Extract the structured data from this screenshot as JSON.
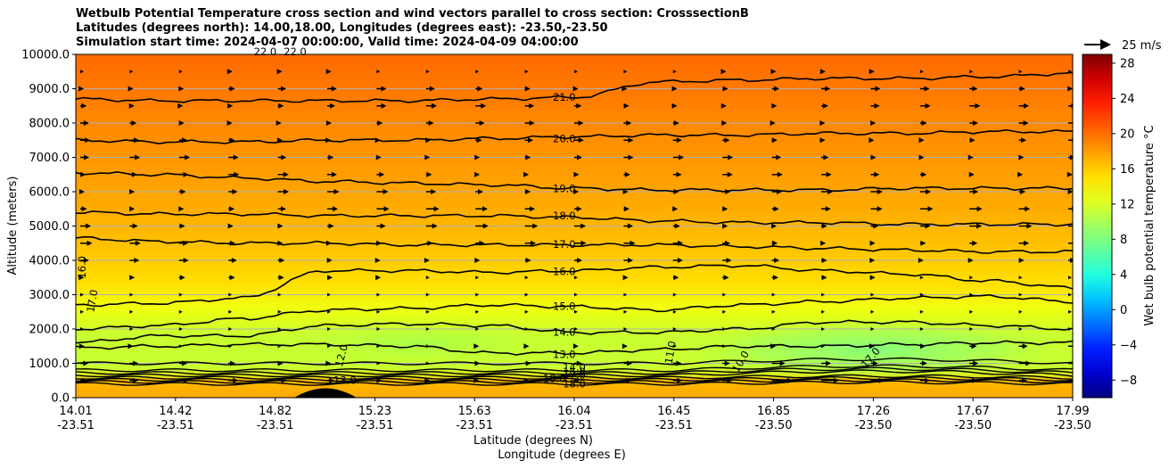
{
  "chart_data": {
    "type": "contour",
    "title_lines": [
      "Wetbulb Potential Temperature cross section and wind vectors parallel to cross section: CrosssectionB",
      "Latitudes (degrees north): 14.00,18.00, Longitudes (degrees east): -23.50,-23.50",
      "Simulation start time: 2024-04-07 00:00:00, Valid time: 2024-04-09 04:00:00"
    ],
    "xlabel_lat": "Latitude (degrees N)",
    "xlabel_lon": "Longitude (degrees E)",
    "ylabel": "Altitude (meters)",
    "ylim": [
      0,
      10000
    ],
    "y_ticks": [
      0,
      1000,
      2000,
      3000,
      4000,
      5000,
      6000,
      7000,
      8000,
      9000,
      10000
    ],
    "y_tick_labels": [
      "0.0",
      "1000.0",
      "2000.0",
      "3000.0",
      "4000.0",
      "5000.0",
      "6000.0",
      "7000.0",
      "8000.0",
      "9000.0",
      "10000.0"
    ],
    "x_tick_lat_labels": [
      "14.01",
      "14.42",
      "14.82",
      "15.23",
      "15.63",
      "16.04",
      "16.45",
      "16.85",
      "17.26",
      "17.67",
      "17.99"
    ],
    "x_tick_lon_labels": [
      "-23.51",
      "-23.51",
      "-23.51",
      "-23.51",
      "-23.51",
      "-23.51",
      "-23.51",
      "-23.50",
      "-23.50",
      "-23.50",
      "-23.50"
    ],
    "grid": true,
    "colorbar": {
      "label": "Wet bulb potential temperature $^\\circ$C",
      "label_display": "Wet bulb potential temperature °C",
      "range": [
        -10,
        29
      ],
      "ticks": [
        -8,
        -4,
        0,
        4,
        8,
        12,
        16,
        20,
        24,
        28
      ],
      "tick_labels": [
        "−8",
        "−4",
        "0",
        "4",
        "8",
        "12",
        "16",
        "20",
        "24",
        "28"
      ],
      "colors": [
        "#000080",
        "#0000d0",
        "#0020ff",
        "#0070ff",
        "#00c0ff",
        "#20ffdf",
        "#60ff9f",
        "#a0ff60",
        "#e0ff20",
        "#ffe000",
        "#ffa000",
        "#ff6000",
        "#ff2000",
        "#d00000",
        "#800000"
      ]
    },
    "quiver_key": {
      "label": "25 m/s",
      "value": 25
    },
    "contour_lines": [
      {
        "level": 21,
        "label": "21.0",
        "altitudes": [
          8700,
          8650,
          8650,
          8650,
          8650,
          8700,
          8750,
          9200,
          9250,
          9300,
          9300,
          9350,
          9450
        ]
      },
      {
        "level": 20,
        "label": "20.0",
        "altitudes": [
          7500,
          7450,
          7450,
          7500,
          7500,
          7550,
          7600,
          7650,
          7650,
          7700,
          7700,
          7750,
          7750
        ]
      },
      {
        "level": 19,
        "label": "19.0",
        "altitudes": [
          6550,
          6500,
          6400,
          6300,
          6250,
          6200,
          6100,
          6050,
          6050,
          6050,
          6100,
          6100,
          6100
        ]
      },
      {
        "level": 18,
        "label": "18.0",
        "altitudes": [
          5400,
          5350,
          5350,
          5300,
          5300,
          5300,
          5250,
          5150,
          5100,
          5100,
          5050,
          5050,
          5050
        ]
      },
      {
        "level": 17,
        "label": "17.0",
        "altitudes": [
          4650,
          4550,
          4500,
          4500,
          4450,
          4450,
          4450,
          4450,
          4400,
          4350,
          4300,
          4250,
          4250
        ]
      },
      {
        "level": 16,
        "label": "16.0",
        "altitudes": [
          2700,
          2750,
          2900,
          3700,
          3700,
          3650,
          3700,
          3800,
          3850,
          3700,
          3600,
          3400,
          3200
        ]
      },
      {
        "level": 15,
        "label": "15.0",
        "altitudes": [
          2000,
          2100,
          2300,
          2550,
          2600,
          2700,
          2650,
          2550,
          2700,
          2800,
          2900,
          2950,
          2800
        ]
      },
      {
        "level": 14,
        "label": "14.0",
        "altitudes": [
          1600,
          1800,
          1800,
          2100,
          2150,
          2100,
          1900,
          1900,
          2000,
          2200,
          2200,
          2100,
          2000
        ]
      },
      {
        "level": 13,
        "label": "13.0",
        "altitudes": [
          1450,
          1500,
          1550,
          1550,
          1500,
          1300,
          1300,
          1400,
          1500,
          1500,
          1550,
          1600,
          1600
        ]
      }
    ],
    "contour_inline_labels": [
      "22.0",
      "22.0",
      "16.0",
      "17.0",
      "13.0",
      "12.0",
      "11.0",
      "10.0",
      "17.0",
      "18.0",
      "14.0",
      "16.0",
      "17.0",
      "18.0"
    ],
    "wind_vector_rows_altitude": [
      500,
      1000,
      1500,
      2000,
      2500,
      3000,
      3500,
      4000,
      4500,
      5000,
      5500,
      6000,
      6500,
      7000,
      7500,
      8000,
      8500,
      9000,
      9500
    ],
    "wind_vector_speeds_mps": [
      9,
      8,
      4,
      2,
      1,
      2,
      6,
      9,
      11,
      12,
      12,
      11,
      10,
      10,
      9,
      9,
      10,
      9,
      4
    ]
  }
}
